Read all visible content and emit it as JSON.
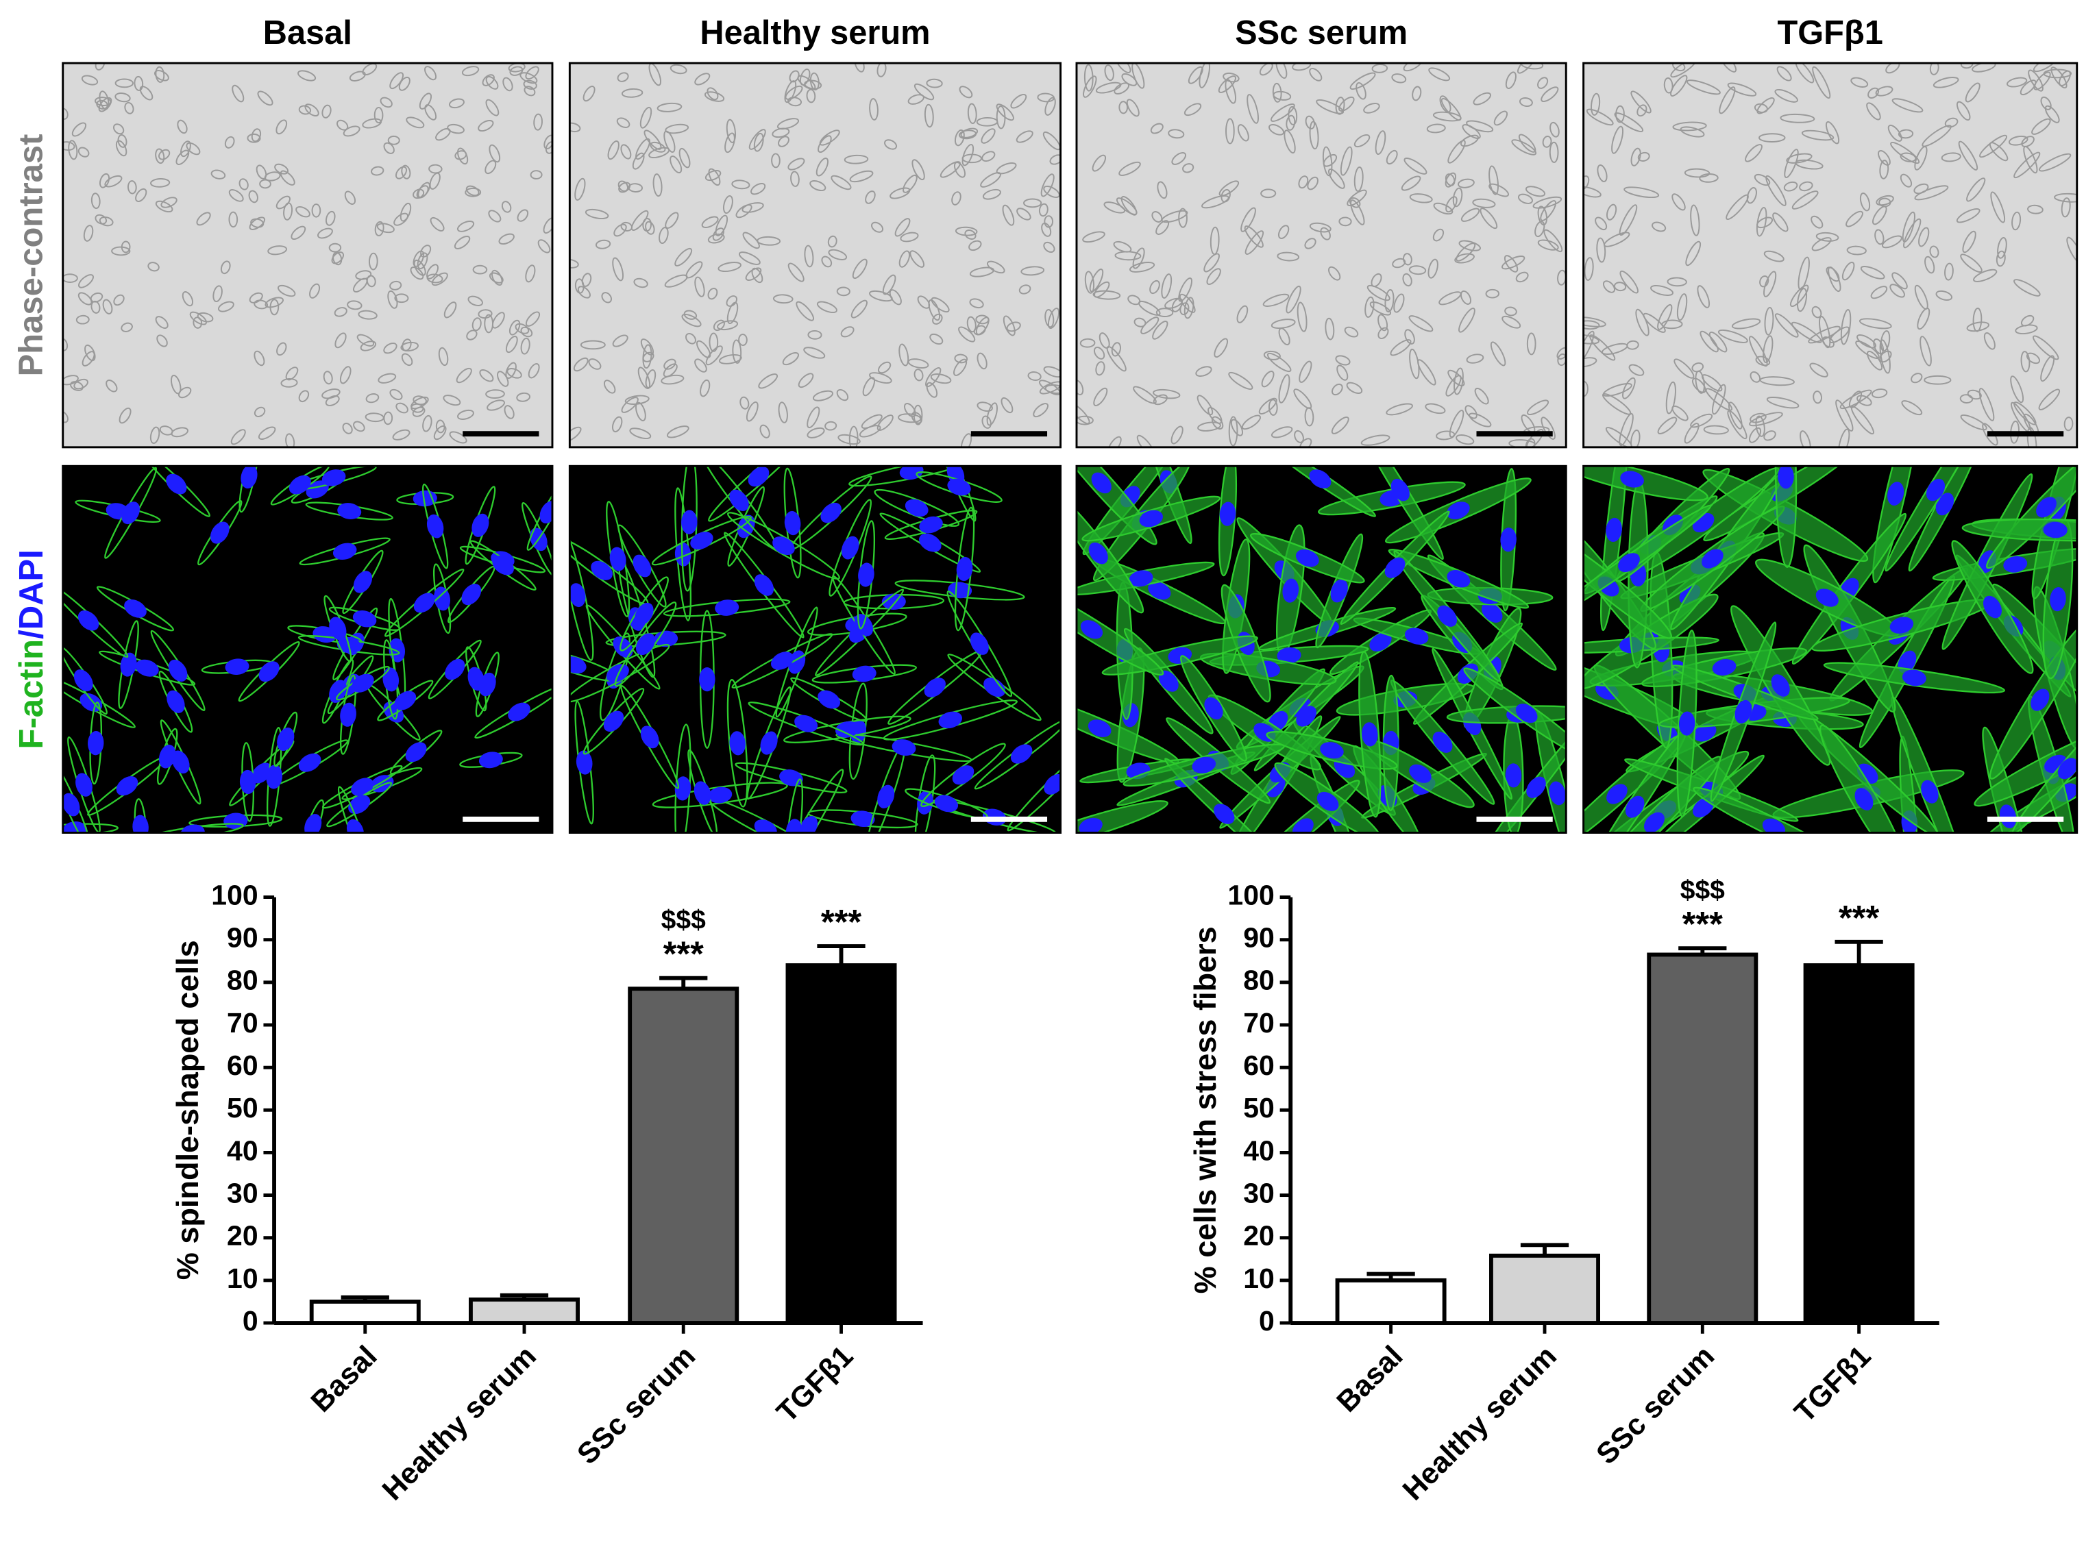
{
  "image_grid": {
    "columns": [
      "Basal",
      "Healthy serum",
      "SSc serum",
      "TGFβ1"
    ],
    "rows": [
      {
        "parts": [
          {
            "text": "Phase-contrast",
            "color": "#808080"
          }
        ]
      },
      {
        "parts": [
          {
            "text": "F-actin",
            "color": "#1fb31f"
          },
          {
            "text": "/DAPI",
            "color": "#1a1aff"
          }
        ]
      }
    ]
  },
  "chart_data": [
    {
      "type": "bar",
      "y_label": "% spindle-shaped cells",
      "categories": [
        "Basal",
        "Healthy serum",
        "SSc serum",
        "TGFβ1"
      ],
      "values": [
        5,
        5.5,
        78.5,
        84
      ],
      "errors": [
        1,
        1,
        2.5,
        4.5
      ],
      "colors": [
        "#ffffff",
        "#d3d3d3",
        "#606060",
        "#000000"
      ],
      "stars": [
        null,
        null,
        "***",
        "***"
      ],
      "dollars": [
        null,
        null,
        "$$$",
        null
      ],
      "ylim": [
        0,
        100
      ],
      "yticks": [
        0,
        10,
        20,
        30,
        40,
        50,
        60,
        70,
        80,
        90,
        100
      ]
    },
    {
      "type": "bar",
      "y_label": "% cells with stress fibers",
      "categories": [
        "Basal",
        "Healthy serum",
        "SSc serum",
        "TGFβ1"
      ],
      "values": [
        10,
        15.8,
        86.5,
        84
      ],
      "errors": [
        1.5,
        2.5,
        1.5,
        5.5
      ],
      "colors": [
        "#ffffff",
        "#d3d3d3",
        "#606060",
        "#000000"
      ],
      "stars": [
        null,
        null,
        "***",
        "***"
      ],
      "dollars": [
        null,
        null,
        "$$$",
        null
      ],
      "ylim": [
        0,
        100
      ],
      "yticks": [
        0,
        10,
        20,
        30,
        40,
        50,
        60,
        70,
        80,
        90,
        100
      ]
    }
  ]
}
